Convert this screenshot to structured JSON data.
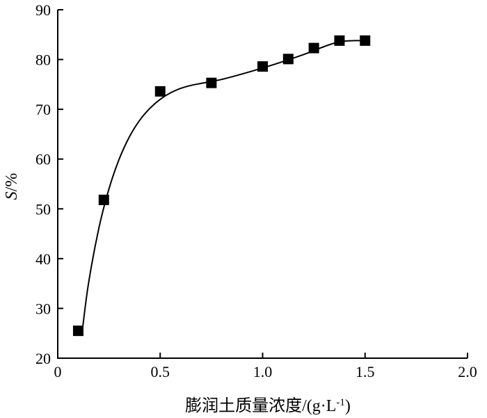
{
  "chart_data": {
    "type": "scatter",
    "title": "",
    "xlabel": "膨润土质量浓度/(g·L",
    "xlabel_sup": "-1",
    "xlabel_close": ")",
    "ylabel_italic": "S",
    "ylabel_rest": "/%",
    "xlim": [
      0,
      2.0
    ],
    "ylim": [
      20,
      90
    ],
    "x_ticks": [
      0,
      0.5,
      1.0,
      1.5,
      2.0
    ],
    "x_tick_labels": [
      "0",
      "0.5",
      "1.0",
      "1.5",
      "2.0"
    ],
    "y_ticks": [
      20,
      30,
      40,
      50,
      60,
      70,
      80,
      90
    ],
    "y_tick_labels": [
      "20",
      "30",
      "40",
      "50",
      "60",
      "70",
      "80",
      "90"
    ],
    "grid": false,
    "legend": "none",
    "series": [
      {
        "marker": "square",
        "color": "#000000",
        "x": [
          0.1,
          0.225,
          0.5,
          0.75,
          1.0,
          1.125,
          1.25,
          1.375,
          1.5
        ],
        "y": [
          25.5,
          51.8,
          73.6,
          75.3,
          78.6,
          80.1,
          82.3,
          83.8,
          83.8
        ]
      }
    ],
    "fit_curve": {
      "color": "#000000",
      "x": [
        0.12,
        0.15,
        0.2,
        0.25,
        0.3,
        0.35,
        0.4,
        0.45,
        0.5,
        0.55,
        0.6,
        0.65,
        0.7,
        0.75,
        0.8,
        0.9,
        1.0,
        1.1,
        1.2,
        1.25,
        1.3,
        1.35,
        1.4,
        1.45,
        1.5
      ],
      "y": [
        25.5,
        35.0,
        46.0,
        54.0,
        60.0,
        64.5,
        67.8,
        70.2,
        72.0,
        73.3,
        74.2,
        74.8,
        75.2,
        75.6,
        76.0,
        77.1,
        78.3,
        79.6,
        81.0,
        81.8,
        82.6,
        83.3,
        83.7,
        83.8,
        83.8
      ]
    }
  }
}
